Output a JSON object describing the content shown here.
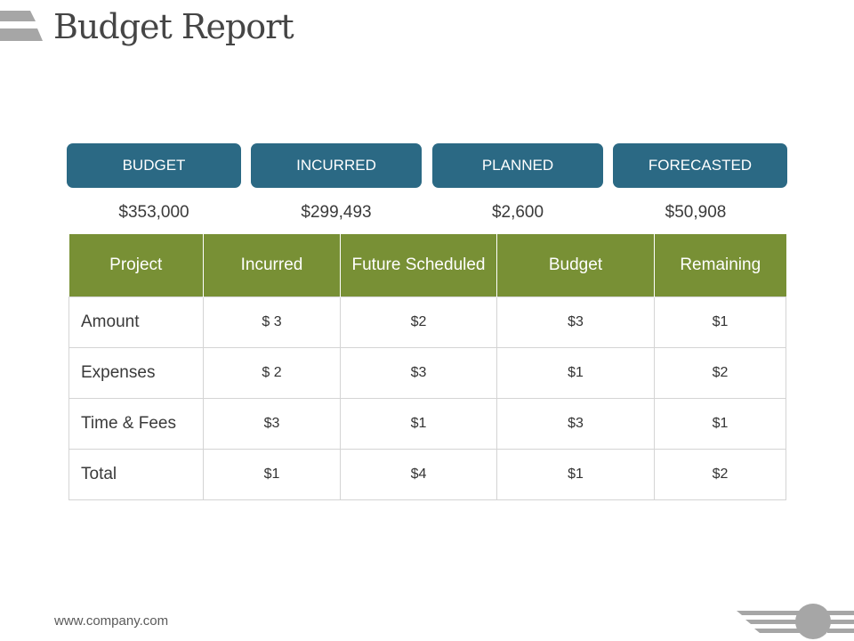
{
  "page": {
    "title": "Budget Report",
    "footer_url": "www.company.com"
  },
  "summary": [
    {
      "label": "BUDGET",
      "value": "$353,000"
    },
    {
      "label": "INCURRED",
      "value": "$299,493"
    },
    {
      "label": "PLANNED",
      "value": "$2,600"
    },
    {
      "label": "FORECASTED",
      "value": "$50,908"
    }
  ],
  "table": {
    "headers": [
      "Project",
      "Incurred",
      "Future Scheduled",
      "Budget",
      "Remaining"
    ],
    "rows": [
      {
        "label": "Amount",
        "cells": [
          "$ 3",
          "$2",
          "$3",
          "$1"
        ]
      },
      {
        "label": "Expenses",
        "cells": [
          "$ 2",
          "$3",
          "$1",
          "$2"
        ]
      },
      {
        "label": "Time & Fees",
        "cells": [
          "$3",
          "$1",
          "$3",
          "$1"
        ]
      },
      {
        "label": "Total",
        "cells": [
          "$1",
          "$4",
          "$1",
          "$2"
        ]
      }
    ]
  },
  "colors": {
    "button_fill": "#2b6984",
    "table_header_fill": "#789035",
    "decoration_gray": "#a6a6a6"
  }
}
